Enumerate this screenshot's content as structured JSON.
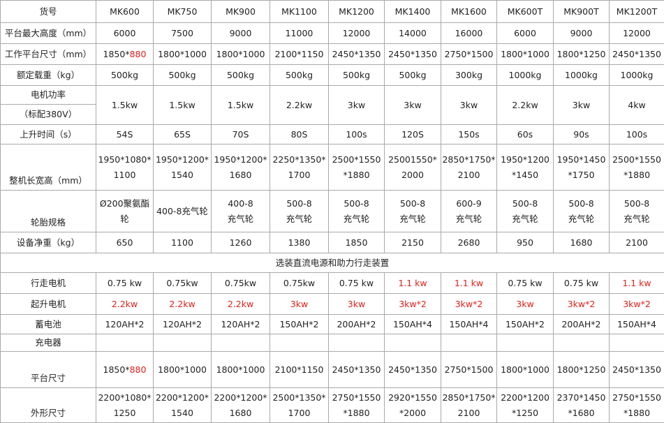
{
  "table": {
    "header": {
      "label": "货号",
      "models": [
        "MK600",
        "MK750",
        "MK900",
        "MK1100",
        "MK1200",
        "MK1400",
        "MK1600",
        "MK600T",
        "MK900T",
        "MK1200T"
      ]
    },
    "rows": [
      {
        "label": "平台最大高度（mm）",
        "cells": [
          "6000",
          "7500",
          "9000",
          "11000",
          "12000",
          "14000",
          "16000",
          "6000",
          "9000",
          "12000"
        ]
      },
      {
        "label": "工作平台尺寸（mm）",
        "cells": [
          {
            "text": "1850*",
            "red_text": "880"
          },
          "1800*1000",
          "1800*1000",
          "2100*1150",
          "2450*1350",
          "2450*1350",
          "2750*1500",
          "1800*1000",
          "1800*1250",
          "2450*1350"
        ]
      },
      {
        "label": "额定载重（kg）",
        "cells": [
          "500kg",
          "500kg",
          "500kg",
          "500kg",
          "500kg",
          "500kg",
          "300kg",
          "1000kg",
          "1000kg",
          "1000kg"
        ]
      },
      {
        "label": [
          "电机功率",
          "（标配380V）"
        ],
        "cells": [
          "1.5kw",
          "1.5kw",
          "1.5kw",
          "2.2kw",
          "3kw",
          "3kw",
          "3kw",
          "2.2kw",
          "3kw",
          "4kw"
        ]
      },
      {
        "label": "上升时间（s）",
        "cells": [
          "54S",
          "65S",
          "70S",
          "80S",
          "100s",
          "120S",
          "150s",
          "60s",
          "90s",
          "100s"
        ]
      },
      {
        "label": "整机长宽高（mm）",
        "cells": [
          [
            "1950*1080*",
            "1100"
          ],
          [
            "1950*1200*",
            "1540"
          ],
          [
            "1950*1200*",
            "1680"
          ],
          [
            "2250*1350*",
            "1700"
          ],
          [
            "2500*1550",
            "*1880"
          ],
          [
            "25001550*",
            "2000"
          ],
          [
            "2850*1750*",
            "2100"
          ],
          [
            "1950*1200",
            "*1450"
          ],
          [
            "1950*1450",
            "*1750"
          ],
          [
            "2500*1550",
            "*1880"
          ]
        ]
      },
      {
        "label": "轮胎规格",
        "cells": [
          [
            "Ø200聚氨酯",
            "轮"
          ],
          [
            "400-8充气轮"
          ],
          [
            "400-8",
            "充气轮"
          ],
          [
            "500-8",
            "充气轮"
          ],
          [
            "500-8",
            "充气轮"
          ],
          [
            "500-8",
            "充气轮"
          ],
          [
            "600-9",
            "充气轮"
          ],
          [
            "500-8",
            "充气轮"
          ],
          [
            "500-8",
            "充气轮"
          ],
          [
            "500-8",
            "充气轮"
          ]
        ]
      },
      {
        "label": "设备净重（kg）",
        "cells": [
          "650",
          "1100",
          "1260",
          "1380",
          "1850",
          "2150",
          "2680",
          "950",
          "1680",
          "2100"
        ]
      },
      {
        "section": "选装直流电源和助力行走装置"
      },
      {
        "label": "行走电机",
        "cells": [
          "0.75 kw",
          "0.75kw",
          "0.75kw",
          "0.75kw",
          "0.75 kw",
          "1.1 kw",
          "1.1 kw",
          "0.75 kw",
          "0.75 kw",
          "1.1 kw"
        ],
        "red": [
          5,
          6,
          9
        ]
      },
      {
        "label": "起升电机",
        "cells": [
          "2.2kw",
          "2.2kw",
          "2.2kw",
          "3kw",
          "3kw",
          "3kw*2",
          "3kw*2",
          "3kw",
          "3kw*2",
          "3kw*2"
        ],
        "red": [
          0,
          1,
          2,
          3,
          4,
          5,
          6,
          7,
          8,
          9
        ]
      },
      {
        "label": "蓄电池",
        "cells": [
          "120AH*2",
          "120AH*2",
          "120AH*2",
          "150AH*2",
          "200AH*2",
          "150AH*4",
          "150AH*4",
          "150AH*2",
          "200AH*2",
          "150AH*4"
        ]
      },
      {
        "label": "充电器"
      },
      {
        "label": "平台尺寸",
        "cells": [
          {
            "text": "1850*",
            "red_text": "880"
          },
          "1800*1000",
          "1800*1000",
          "2100*1150",
          "2450*1350",
          "2450*1350",
          "2750*1500",
          "1800*1000",
          "1800*1250",
          "2450*1350"
        ]
      },
      {
        "label": "外形尺寸",
        "cells": [
          [
            "2200*1080*",
            "1250"
          ],
          [
            "2200*1200*",
            "1540"
          ],
          [
            "2200*1200*",
            "1680"
          ],
          [
            "2500*1350*",
            "1700"
          ],
          [
            "2750*1550",
            "*1880"
          ],
          [
            "2920*1550",
            "*2000"
          ],
          [
            "2850*1750*",
            "2100"
          ],
          [
            "2200*1200",
            "*1250"
          ],
          [
            "2370*1450",
            "*1680"
          ],
          [
            "2750*1550",
            "*1880"
          ]
        ]
      }
    ]
  }
}
